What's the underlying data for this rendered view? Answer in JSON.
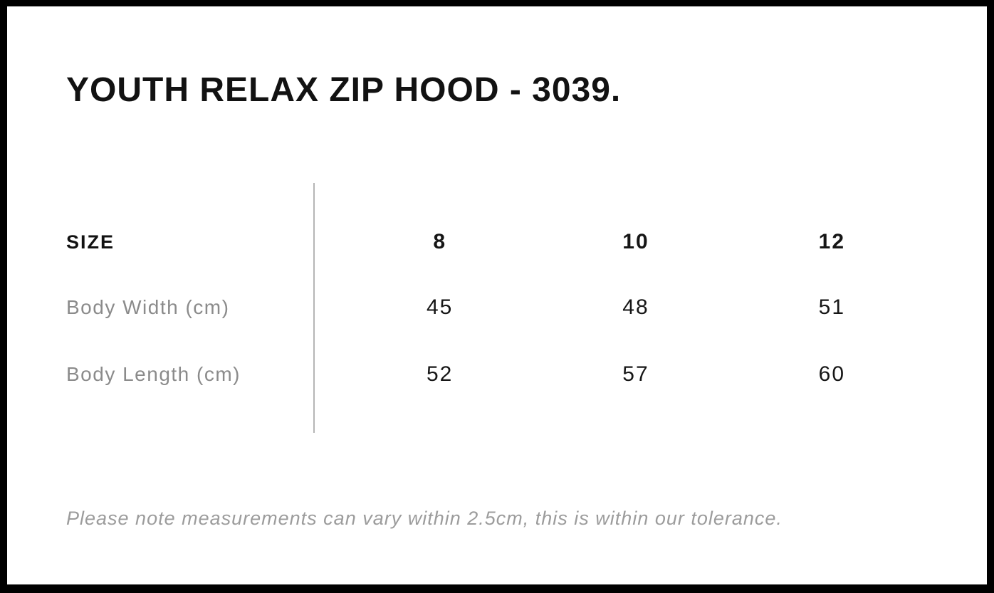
{
  "title": "YOUTH RELAX ZIP HOOD - 3039.",
  "table": {
    "header": {
      "label": "SIZE",
      "columns": [
        "8",
        "10",
        "12"
      ]
    },
    "rows": [
      {
        "label": "Body Width (cm)",
        "values": [
          "45",
          "48",
          "51"
        ]
      },
      {
        "label": "Body Length (cm)",
        "values": [
          "52",
          "57",
          "60"
        ]
      }
    ]
  },
  "footer": {
    "note": "Please note measurements can vary within 2.5cm, this is within our tolerance."
  },
  "colors": {
    "frame": "#000000",
    "card_background": "#ffffff",
    "heading_text": "#121212",
    "value_text": "#161616",
    "label_gray": "#8b8b8b",
    "note_gray": "#9c9c9c",
    "divider_gray": "#b5b5b5"
  },
  "chart_data": {
    "type": "table",
    "title": "YOUTH RELAX ZIP HOOD - 3039.",
    "columns": [
      "SIZE",
      "8",
      "10",
      "12"
    ],
    "rows": [
      [
        "Body Width (cm)",
        45,
        48,
        51
      ],
      [
        "Body Length (cm)",
        52,
        57,
        60
      ]
    ],
    "note": "Please note measurements can vary within 2.5cm, this is within our tolerance."
  }
}
